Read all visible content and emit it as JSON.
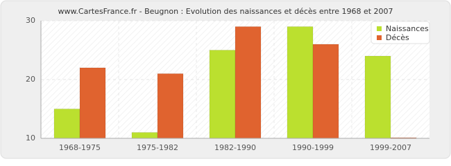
{
  "chart_data": {
    "type": "bar",
    "title": "www.CartesFrance.fr - Beugnon : Evolution des naissances et décès entre 1968 et 2007",
    "categories": [
      "1968-1975",
      "1975-1982",
      "1982-1990",
      "1990-1999",
      "1999-2007"
    ],
    "series": [
      {
        "name": "Naissances",
        "color": "#bbe02f",
        "values": [
          15,
          11,
          25,
          29,
          24
        ]
      },
      {
        "name": "Décès",
        "color": "#e0632f",
        "values": [
          22,
          21,
          29,
          26,
          10
        ]
      }
    ],
    "ylim": [
      10,
      30
    ],
    "yticks": [
      10,
      20,
      30
    ],
    "grid": true,
    "legend": "top-right"
  }
}
